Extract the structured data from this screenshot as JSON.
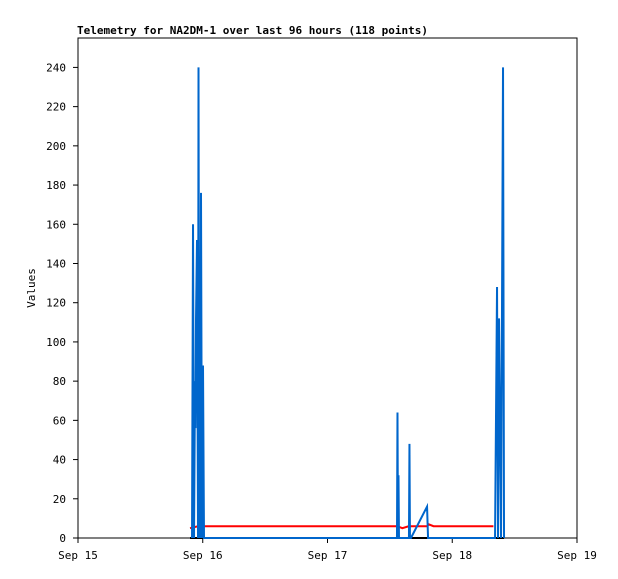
{
  "chart_data": {
    "type": "line",
    "title": "Telemetry for NA2DM-1 over last 96 hours (118 points)",
    "y_label": "Values",
    "xlim": [
      15,
      19
    ],
    "xticks": [
      {
        "value": 15,
        "label": "Sep 15"
      },
      {
        "value": 16,
        "label": "Sep 16"
      },
      {
        "value": 17,
        "label": "Sep 17"
      },
      {
        "value": 18,
        "label": "Sep 18"
      },
      {
        "value": 19,
        "label": "Sep 19"
      }
    ],
    "ylim": [
      0,
      255
    ],
    "yticks": [
      0,
      20,
      40,
      60,
      80,
      100,
      120,
      140,
      160,
      180,
      200,
      220,
      240
    ],
    "grid": false,
    "series": [
      {
        "color": "#000000",
        "x": [
          15.898,
          18.415
        ],
        "values": [
          0,
          0
        ]
      },
      {
        "color": "#ff0000",
        "x": [
          15.898,
          15.962,
          17.56,
          17.6,
          17.65,
          17.8,
          17.81,
          17.85,
          18.33
        ],
        "values": [
          5,
          6,
          6,
          5,
          6,
          6,
          7,
          6,
          6
        ]
      },
      {
        "color": "#0066cc",
        "x": [
          15.914,
          15.922,
          15.93,
          15.938,
          15.942,
          15.946,
          15.954,
          15.962,
          15.966,
          15.97,
          15.978,
          15.986,
          15.994,
          16.002,
          16.01,
          17.557,
          17.561,
          17.565,
          17.569,
          17.573,
          17.653,
          17.657,
          17.661,
          17.669,
          17.798,
          17.806,
          18.343,
          18.351,
          18.359,
          18.367,
          18.375,
          18.383,
          18.391,
          18.399,
          18.407,
          18.415
        ],
        "values": [
          0,
          160,
          0,
          80,
          56,
          112,
          152,
          0,
          240,
          80,
          0,
          176,
          0,
          88,
          0,
          0,
          64,
          0,
          32,
          0,
          0,
          48,
          0,
          0,
          16,
          0,
          0,
          64,
          128,
          0,
          112,
          56,
          0,
          120,
          240,
          0
        ]
      }
    ]
  }
}
